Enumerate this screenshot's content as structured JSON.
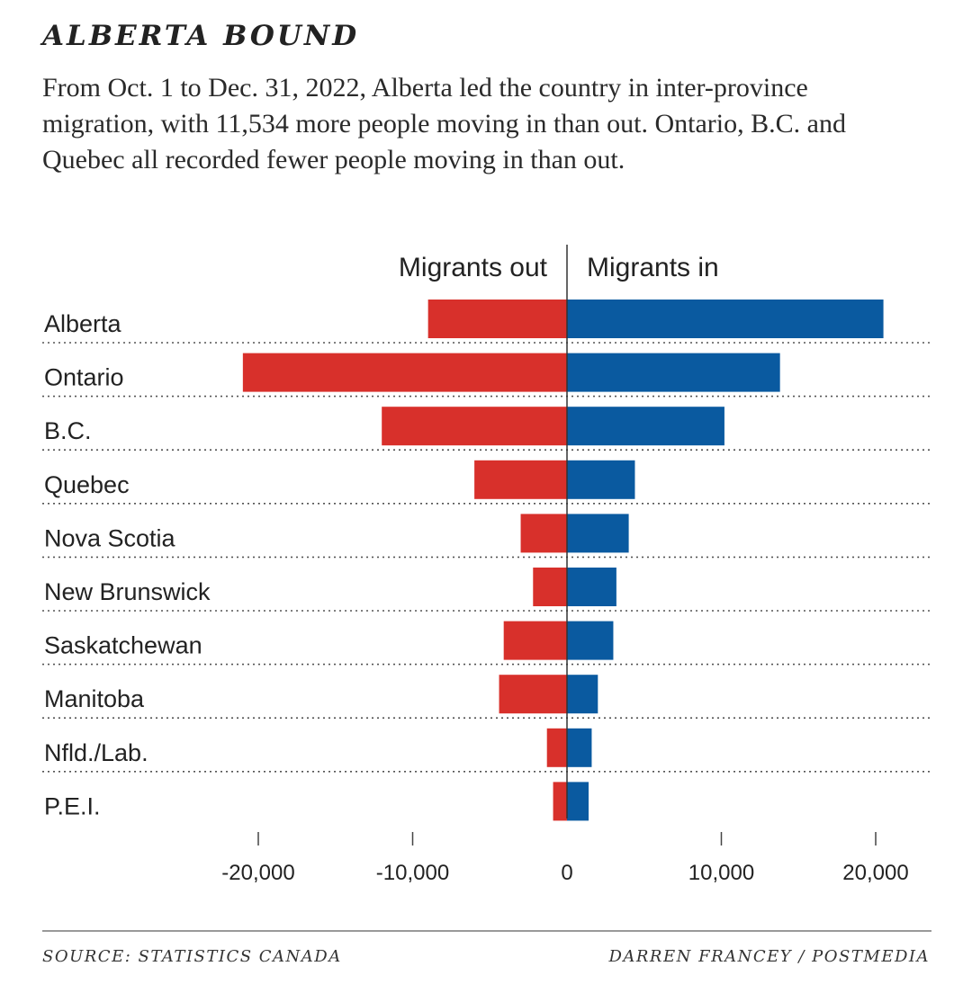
{
  "title": "ALBERTA BOUND",
  "subtitle": "From Oct. 1 to Dec. 31, 2022, Alberta led the country in inter-province migration, with 11,534 more people moving in than out. Ontario, B.C. and Quebec all recorded fewer people moving in than out.",
  "footer": {
    "source": "SOURCE: STATISTICS CANADA",
    "credit": "DARREN FRANCEY / POSTMEDIA"
  },
  "chart_data": {
    "type": "bar",
    "orientation": "horizontal-diverging",
    "categories": [
      "Alberta",
      "Ontario",
      "B.C.",
      "Quebec",
      "Nova Scotia",
      "New Brunswick",
      "Saskatchewan",
      "Manitoba",
      "Nfld./Lab.",
      "P.E.I."
    ],
    "series": [
      {
        "name": "Migrants out",
        "color": "#d8302b",
        "values": [
          -9000,
          -21000,
          -12000,
          -6000,
          -3000,
          -2200,
          -4100,
          -4400,
          -1300,
          -900
        ]
      },
      {
        "name": "Migrants in",
        "color": "#0a5aa0",
        "values": [
          20500,
          13800,
          10200,
          4400,
          4000,
          3200,
          3000,
          2000,
          1600,
          1400
        ]
      }
    ],
    "xlim": [
      -24000,
      24000
    ],
    "ticks": [
      -20000,
      -10000,
      0,
      10000,
      20000
    ],
    "tick_labels": [
      "-20,000",
      "-10,000",
      "0",
      "10,000",
      "20,000"
    ],
    "legend": "top-center",
    "gridlines": "dotted-row-separators"
  }
}
